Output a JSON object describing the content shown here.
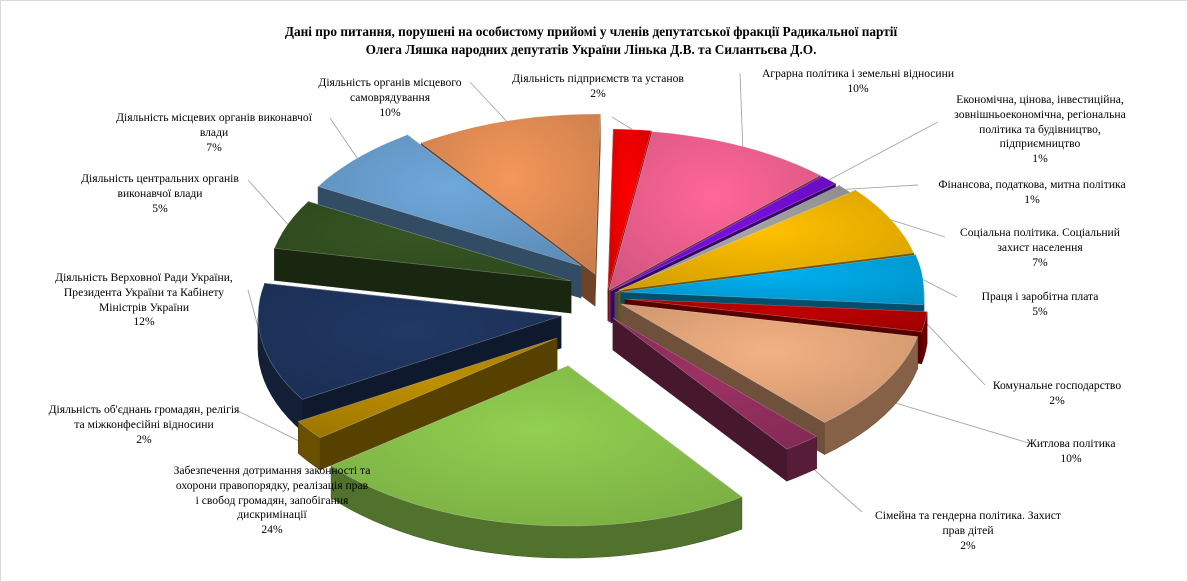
{
  "chart_data": {
    "type": "pie",
    "title": [
      "Дані про питання, порушені на особистому прийомі у членів депутатської фракції Радикальної партії",
      "Олега Ляшка  народних депутатів України Лінька Д.В. та Силантьєва Д.О."
    ],
    "legend": "none",
    "slices": [
      {
        "label": [
          "Діяльність  підприємств та установ"
        ],
        "value_label": "2%",
        "value": 2,
        "color": "#ff0000"
      },
      {
        "label": [
          "Аграрна політика  і земельні відносини"
        ],
        "value_label": "10%",
        "value": 10,
        "color": "#ff6699"
      },
      {
        "label": [
          "Економічна, цінова, інвестиційна,",
          "зовнішньоекономічна, регіональна",
          "політика та будівництво,",
          "підприємництво"
        ],
        "value_label": "1%",
        "value": 1,
        "color": "#7b0ee0"
      },
      {
        "label": [
          "Фінансова, податкова, митна політика"
        ],
        "value_label": "1%",
        "value": 1,
        "color": "#a6a6a6"
      },
      {
        "label": [
          "Соціальна політика.  Соціальний",
          "захист  населення"
        ],
        "value_label": "7%",
        "value": 7,
        "color": "#ffc000"
      },
      {
        "label": [
          "Праця і заробітна плата"
        ],
        "value_label": "5%",
        "value": 5,
        "color": "#00b0f0"
      },
      {
        "label": [
          "Комунальне господарство"
        ],
        "value_label": "2%",
        "value": 2,
        "color": "#c00000"
      },
      {
        "label": [
          "Житлова політика"
        ],
        "value_label": "10%",
        "value": 10,
        "color": "#f4b183"
      },
      {
        "label": [
          "Сімейна та гендерна політика.  Захист",
          "прав дітей"
        ],
        "value_label": "2%",
        "value": 2,
        "color": "#9e3265"
      },
      {
        "label": [
          "Забезпечення дотримання законності  та",
          "охорони правопорядку, реалізація прав",
          "і свобод громадян, запобігання",
          "дискримінації"
        ],
        "value_label": "24%",
        "value": 24,
        "color": "#92d050"
      },
      {
        "label": [
          "Діяльність  об'єднань громадян, релігія",
          "та міжконфесійні відносини"
        ],
        "value_label": "2%",
        "value": 2,
        "color": "#bf9000"
      },
      {
        "label": [
          "Діяльність  Верховної Ради України,",
          "Президента  України та Кабінету",
          "Міністрів  України"
        ],
        "value_label": "12%",
        "value": 12,
        "color": "#203864"
      },
      {
        "label": [
          "Діяльність  центральних  органів",
          "виконавчої влади"
        ],
        "value_label": "5%",
        "value": 5,
        "color": "#375623"
      },
      {
        "label": [
          "Діяльність  місцевих органів виконавчої",
          "влади"
        ],
        "value_label": "7%",
        "value": 7,
        "color": "#6fa8dc"
      },
      {
        "label": [
          "Діяльність  органів місцевого",
          "самоврядування"
        ],
        "value_label": "10%",
        "value": 10,
        "color": "#f4975a"
      }
    ]
  }
}
